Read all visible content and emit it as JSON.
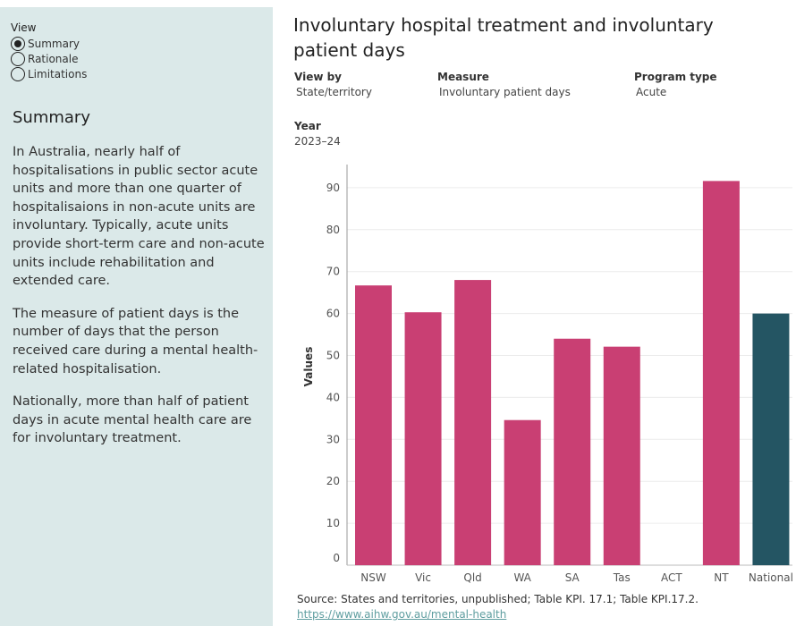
{
  "sidebar": {
    "view_label": "View",
    "options": [
      {
        "label": "Summary",
        "checked": true
      },
      {
        "label": "Rationale",
        "checked": false
      },
      {
        "label": "Limitations",
        "checked": false
      }
    ],
    "heading": "Summary",
    "paragraphs": [
      "In Australia, nearly half of hospitalisations in public sector acute units and more than one quarter of hospitalisaions in non-acute units are involuntary. Typically, acute units provide short-term care and non-acute units include rehabilitation and extended care.",
      "The measure of patient days is the number of days that the person received care during a mental health-related hospitalisation.",
      "Nationally, more than half of patient days in acute mental health care are for involuntary treatment."
    ]
  },
  "main": {
    "title": "Involuntary hospital treatment and involuntary patient days",
    "filters": {
      "view_by": {
        "label": "View by",
        "value": "State/territory"
      },
      "measure": {
        "label": "Measure",
        "value": "Involuntary patient days"
      },
      "program_type": {
        "label": "Program type",
        "value": "Acute"
      },
      "year": {
        "label": "Year",
        "value": "2023–24"
      }
    },
    "source_text": "Source: States and territories, unpublished; Table KPI. 17.1; Table KPI.17.2.",
    "source_link": "https://www.aihw.gov.au/mental-health"
  },
  "chart_data": {
    "type": "bar",
    "categories": [
      "NSW",
      "Vic",
      "Qld",
      "WA",
      "SA",
      "Tas",
      "ACT",
      "NT",
      "National"
    ],
    "values": [
      66.7,
      60.3,
      68.0,
      34.6,
      54.0,
      52.1,
      null,
      91.6,
      60.0
    ],
    "ylabel": "Values",
    "ylim": [
      0,
      95
    ],
    "yticks": [
      0,
      10,
      20,
      30,
      40,
      50,
      60,
      70,
      80,
      90
    ],
    "grid": true,
    "colors": {
      "state": "#c93f73",
      "national": "#245563"
    }
  }
}
